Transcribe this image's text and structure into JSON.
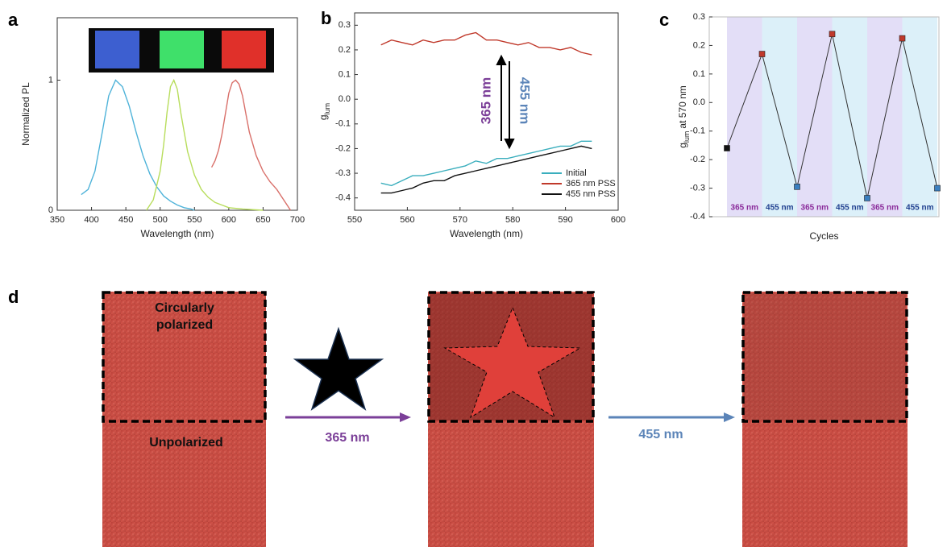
{
  "panel_labels": [
    "a",
    "b",
    "c",
    "d"
  ],
  "chart_data": [
    {
      "type": "line",
      "xlabel": "Wavelength (nm)",
      "ylabel": [
        "Normalized PL"
      ],
      "xlim": [
        350,
        700
      ],
      "xticks": [
        350,
        400,
        450,
        500,
        550,
        600,
        650,
        700
      ],
      "ylim": [
        0,
        1.48
      ],
      "yticks": [
        0,
        1
      ],
      "series": [
        {
          "color": "#4fb3d9",
          "x": [
            385,
            395,
            405,
            415,
            425,
            435,
            445,
            455,
            465,
            475,
            485,
            495,
            505,
            515,
            525,
            535,
            545,
            550
          ],
          "values": [
            0.12,
            0.16,
            0.3,
            0.58,
            0.88,
            1.0,
            0.95,
            0.8,
            0.6,
            0.42,
            0.28,
            0.18,
            0.11,
            0.07,
            0.04,
            0.02,
            0.01,
            0.0
          ]
        },
        {
          "color": "#b8dd5c",
          "x": [
            480,
            490,
            500,
            505,
            510,
            515,
            520,
            525,
            530,
            540,
            550,
            560,
            570,
            580,
            590,
            600,
            620,
            650
          ],
          "values": [
            0.0,
            0.08,
            0.3,
            0.5,
            0.75,
            0.95,
            1.0,
            0.93,
            0.75,
            0.45,
            0.27,
            0.16,
            0.1,
            0.06,
            0.04,
            0.02,
            0.01,
            0.0
          ]
        },
        {
          "color": "#d9706a",
          "x": [
            575,
            580,
            585,
            590,
            595,
            600,
            605,
            610,
            615,
            620,
            625,
            630,
            640,
            650,
            660,
            670,
            680,
            690
          ],
          "values": [
            0.33,
            0.38,
            0.46,
            0.58,
            0.74,
            0.9,
            0.98,
            1.0,
            0.97,
            0.88,
            0.74,
            0.6,
            0.42,
            0.3,
            0.22,
            0.16,
            0.08,
            0.0
          ]
        }
      ]
    },
    {
      "type": "line",
      "xlabel": "Wavelength (nm)",
      "ylabel": [
        "g",
        "lum"
      ],
      "xlim": [
        550,
        600
      ],
      "xticks": [
        550,
        560,
        570,
        580,
        590,
        600
      ],
      "ylim": [
        -0.45,
        0.35
      ],
      "yticks": [
        0.3,
        0.2,
        0.1,
        {
          "value": 0,
          "label": "0.0"
        },
        -0.1,
        -0.2,
        -0.3,
        -0.4
      ],
      "annotations": [
        "365 nm",
        "455 nm"
      ],
      "x": [
        555,
        557,
        559,
        561,
        563,
        565,
        567,
        569,
        571,
        573,
        575,
        577,
        579,
        581,
        583,
        585,
        587,
        589,
        591,
        593,
        595
      ],
      "series": [
        {
          "name": "Initial",
          "color": "#3aaebd",
          "values": [
            -0.34,
            -0.35,
            -0.33,
            -0.31,
            -0.31,
            -0.3,
            -0.29,
            -0.28,
            -0.27,
            -0.25,
            -0.26,
            -0.24,
            -0.24,
            -0.23,
            -0.22,
            -0.21,
            -0.2,
            -0.19,
            -0.19,
            -0.17,
            -0.17
          ]
        },
        {
          "name": "365 nm PSS",
          "color": "#c0392b",
          "values": [
            0.22,
            0.24,
            0.23,
            0.22,
            0.24,
            0.23,
            0.24,
            0.24,
            0.26,
            0.27,
            0.24,
            0.24,
            0.23,
            0.22,
            0.23,
            0.21,
            0.21,
            0.2,
            0.21,
            0.19,
            0.18
          ]
        },
        {
          "name": "455 nm PSS",
          "color": "#111111",
          "values": [
            -0.38,
            -0.38,
            -0.37,
            -0.36,
            -0.34,
            -0.33,
            -0.33,
            -0.31,
            -0.3,
            -0.29,
            -0.28,
            -0.27,
            -0.26,
            -0.25,
            -0.24,
            -0.23,
            -0.22,
            -0.21,
            -0.2,
            -0.19,
            -0.2
          ]
        }
      ]
    },
    {
      "type": "cycle",
      "xlabel": "Cycles",
      "ylabel": [
        "g",
        "lum",
        "at 570 nm"
      ],
      "ylim": [
        -0.4,
        0.3
      ],
      "yticks": [
        0.3,
        0.2,
        0.1,
        {
          "value": 0,
          "label": "0.0"
        },
        -0.1,
        -0.2,
        -0.3,
        -0.4
      ],
      "categories": [
        null,
        null,
        null,
        null,
        null,
        null,
        null
      ],
      "values": [
        -0.16,
        0.17,
        -0.295,
        0.24,
        -0.335,
        0.225,
        -0.3
      ],
      "line_color": "#333333",
      "point_colors": [
        "#111111",
        "#c0392b",
        "#3a7fc0",
        "#c0392b",
        "#3a7fc0",
        "#c0392b",
        "#3a7fc0"
      ],
      "band_labels": [
        "365 nm",
        "455 nm",
        "365 nm",
        "455 nm",
        "365 nm",
        "455 nm"
      ],
      "band_colors": [
        "#e3def7",
        "#dcf0f9"
      ],
      "band_label_colors": [
        "#8a2a9a",
        "#1f3f8f"
      ]
    }
  ],
  "panel_d": {
    "labels": [
      "Circularly",
      "polarized",
      "Unpolarized"
    ],
    "arrows": [
      "365 nm",
      "455 nm"
    ]
  }
}
